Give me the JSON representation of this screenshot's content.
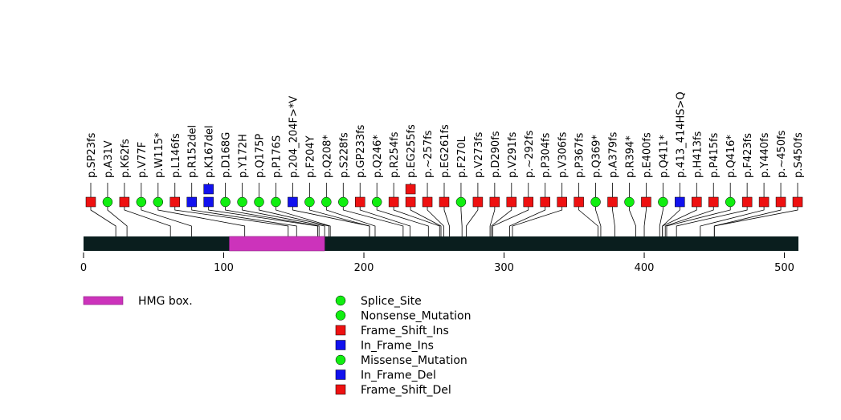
{
  "chart_data": {
    "type": "lollipop",
    "protein_length": 510,
    "x_axis": {
      "min": 0,
      "max": 510,
      "ticks": [
        0,
        100,
        200,
        300,
        400,
        500
      ]
    },
    "domains": [
      {
        "name": "HMG box.",
        "start": 104,
        "end": 172,
        "color": "#cc33bb"
      }
    ],
    "colors": {
      "backbone": "#0a1e1e",
      "red": "#ee1111",
      "green": "#11ee11",
      "blue": "#1111ee"
    },
    "mutations": [
      {
        "label": "p.SP23fs",
        "pos": 23,
        "marks": [
          {
            "shape": "square",
            "color": "red"
          }
        ]
      },
      {
        "label": "p.A31V",
        "pos": 31,
        "marks": [
          {
            "shape": "circle",
            "color": "green"
          }
        ]
      },
      {
        "label": "p.K62fs",
        "pos": 62,
        "marks": [
          {
            "shape": "square",
            "color": "red"
          }
        ]
      },
      {
        "label": "p.V77F",
        "pos": 77,
        "marks": [
          {
            "shape": "circle",
            "color": "green"
          }
        ]
      },
      {
        "label": "p.W115*",
        "pos": 115,
        "marks": [
          {
            "shape": "circle",
            "color": "green"
          }
        ]
      },
      {
        "label": "p.L146fs",
        "pos": 146,
        "marks": [
          {
            "shape": "square",
            "color": "red"
          }
        ]
      },
      {
        "label": "p.R152del",
        "pos": 152,
        "marks": [
          {
            "shape": "square",
            "color": "blue"
          }
        ]
      },
      {
        "label": "p.K167del",
        "pos": 167,
        "marks": [
          {
            "shape": "square",
            "color": "blue"
          },
          {
            "shape": "square",
            "color": "blue"
          }
        ]
      },
      {
        "label": "p.D168G",
        "pos": 168,
        "marks": [
          {
            "shape": "circle",
            "color": "green"
          }
        ]
      },
      {
        "label": "p.Y172H",
        "pos": 172,
        "marks": [
          {
            "shape": "circle",
            "color": "green"
          }
        ]
      },
      {
        "label": "p.Q175P",
        "pos": 175,
        "marks": [
          {
            "shape": "circle",
            "color": "green"
          }
        ]
      },
      {
        "label": "p.P176S",
        "pos": 176,
        "marks": [
          {
            "shape": "circle",
            "color": "green"
          }
        ]
      },
      {
        "label": "p.204_204F>*V",
        "pos": 204,
        "marks": [
          {
            "shape": "square",
            "color": "blue"
          }
        ]
      },
      {
        "label": "p.F204Y",
        "pos": 204,
        "marks": [
          {
            "shape": "circle",
            "color": "green"
          }
        ]
      },
      {
        "label": "p.Q208*",
        "pos": 208,
        "marks": [
          {
            "shape": "circle",
            "color": "green"
          }
        ]
      },
      {
        "label": "p.S228fs",
        "pos": 228,
        "marks": [
          {
            "shape": "circle",
            "color": "green"
          }
        ]
      },
      {
        "label": "p.GP233fs",
        "pos": 233,
        "marks": [
          {
            "shape": "square",
            "color": "red"
          }
        ]
      },
      {
        "label": "p.Q246*",
        "pos": 246,
        "marks": [
          {
            "shape": "circle",
            "color": "green"
          }
        ]
      },
      {
        "label": "p.R254fs",
        "pos": 254,
        "marks": [
          {
            "shape": "square",
            "color": "red"
          }
        ]
      },
      {
        "label": "p.EG255fs",
        "pos": 255,
        "marks": [
          {
            "shape": "square",
            "color": "red"
          },
          {
            "shape": "square",
            "color": "red"
          }
        ]
      },
      {
        "label": "p.~257fs",
        "pos": 257,
        "marks": [
          {
            "shape": "square",
            "color": "red"
          }
        ]
      },
      {
        "label": "p.EG261fs",
        "pos": 261,
        "marks": [
          {
            "shape": "square",
            "color": "red"
          }
        ]
      },
      {
        "label": "p.F270L",
        "pos": 270,
        "marks": [
          {
            "shape": "circle",
            "color": "green"
          }
        ]
      },
      {
        "label": "p.V273fs",
        "pos": 273,
        "marks": [
          {
            "shape": "square",
            "color": "red"
          }
        ]
      },
      {
        "label": "p.D290fs",
        "pos": 290,
        "marks": [
          {
            "shape": "square",
            "color": "red"
          }
        ]
      },
      {
        "label": "p.V291fs",
        "pos": 291,
        "marks": [
          {
            "shape": "square",
            "color": "red"
          }
        ]
      },
      {
        "label": "p.~292fs",
        "pos": 292,
        "marks": [
          {
            "shape": "square",
            "color": "red"
          }
        ]
      },
      {
        "label": "p.P304fs",
        "pos": 304,
        "marks": [
          {
            "shape": "square",
            "color": "red"
          }
        ]
      },
      {
        "label": "p.V306fs",
        "pos": 306,
        "marks": [
          {
            "shape": "square",
            "color": "red"
          }
        ]
      },
      {
        "label": "p.P367fs",
        "pos": 367,
        "marks": [
          {
            "shape": "square",
            "color": "red"
          }
        ]
      },
      {
        "label": "p.Q369*",
        "pos": 369,
        "marks": [
          {
            "shape": "circle",
            "color": "green"
          }
        ]
      },
      {
        "label": "p.A379fs",
        "pos": 379,
        "marks": [
          {
            "shape": "square",
            "color": "red"
          }
        ]
      },
      {
        "label": "p.R394*",
        "pos": 394,
        "marks": [
          {
            "shape": "circle",
            "color": "green"
          }
        ]
      },
      {
        "label": "p.E400fs",
        "pos": 400,
        "marks": [
          {
            "shape": "square",
            "color": "red"
          }
        ]
      },
      {
        "label": "p.Q411*",
        "pos": 411,
        "marks": [
          {
            "shape": "circle",
            "color": "green"
          }
        ]
      },
      {
        "label": "p.413_414HS>Q",
        "pos": 413,
        "marks": [
          {
            "shape": "square",
            "color": "blue"
          }
        ]
      },
      {
        "label": "p.H413fs",
        "pos": 413,
        "marks": [
          {
            "shape": "square",
            "color": "red"
          }
        ]
      },
      {
        "label": "p.P415fs",
        "pos": 415,
        "marks": [
          {
            "shape": "square",
            "color": "red"
          }
        ]
      },
      {
        "label": "p.Q416*",
        "pos": 416,
        "marks": [
          {
            "shape": "circle",
            "color": "green"
          }
        ]
      },
      {
        "label": "p.F423fs",
        "pos": 423,
        "marks": [
          {
            "shape": "square",
            "color": "red"
          }
        ]
      },
      {
        "label": "p.Y440fs",
        "pos": 440,
        "marks": [
          {
            "shape": "square",
            "color": "red"
          }
        ]
      },
      {
        "label": "p.~450fs",
        "pos": 450,
        "marks": [
          {
            "shape": "square",
            "color": "red"
          }
        ]
      },
      {
        "label": "p.S450fs",
        "pos": 450,
        "marks": [
          {
            "shape": "square",
            "color": "red"
          }
        ]
      }
    ],
    "domain_legend": [
      {
        "label": "HMG box.",
        "color": "#cc33bb"
      }
    ],
    "mutation_legend": [
      {
        "label": "Splice_Site",
        "shape": "circle",
        "color": "green"
      },
      {
        "label": "Nonsense_Mutation",
        "shape": "circle",
        "color": "green"
      },
      {
        "label": "Frame_Shift_Ins",
        "shape": "square",
        "color": "red"
      },
      {
        "label": "In_Frame_Ins",
        "shape": "square",
        "color": "blue"
      },
      {
        "label": "Missense_Mutation",
        "shape": "circle",
        "color": "green"
      },
      {
        "label": "In_Frame_Del",
        "shape": "square",
        "color": "blue"
      },
      {
        "label": "Frame_Shift_Del",
        "shape": "square",
        "color": "red"
      }
    ]
  }
}
